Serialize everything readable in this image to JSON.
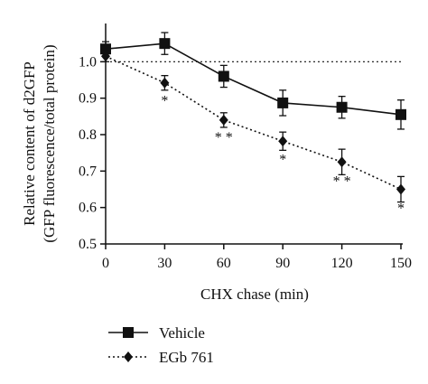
{
  "chart_data": {
    "type": "line",
    "title": "",
    "xlabel": "CHX chase (min)",
    "ylabel": "Relative content of d2GFP",
    "ylabel2": "(GFP fluorescence/total protein)",
    "x": [
      0,
      30,
      60,
      90,
      120,
      150
    ],
    "xlim": [
      0,
      150
    ],
    "ylim": [
      0.5,
      1.1
    ],
    "x_ticks": [
      "0",
      "30",
      "60",
      "90",
      "120",
      "150"
    ],
    "y_ticks": [
      "0.5",
      "0.6",
      "0.7",
      "0.8",
      "0.9",
      "1.0"
    ],
    "reference_line": 1.0,
    "legend_position": "bottom-left",
    "series": [
      {
        "name": "Vehicle",
        "marker": "square",
        "line_style": "solid",
        "values": [
          1.035,
          1.05,
          0.96,
          0.887,
          0.875,
          0.855
        ],
        "errors": [
          0.02,
          0.03,
          0.03,
          0.035,
          0.03,
          0.04
        ]
      },
      {
        "name": "EGb 761",
        "marker": "diamond",
        "line_style": "dotted",
        "values": [
          1.015,
          0.942,
          0.84,
          0.782,
          0.725,
          0.65
        ],
        "errors": [
          0.015,
          0.02,
          0.02,
          0.025,
          0.035,
          0.035
        ]
      }
    ],
    "significance": [
      {
        "x": 30,
        "y": 0.88,
        "text": "*"
      },
      {
        "x": 60,
        "y": 0.78,
        "text": "* *"
      },
      {
        "x": 90,
        "y": 0.72,
        "text": "*"
      },
      {
        "x": 120,
        "y": 0.66,
        "text": "* *"
      },
      {
        "x": 150,
        "y": 0.585,
        "text": "*"
      }
    ]
  }
}
